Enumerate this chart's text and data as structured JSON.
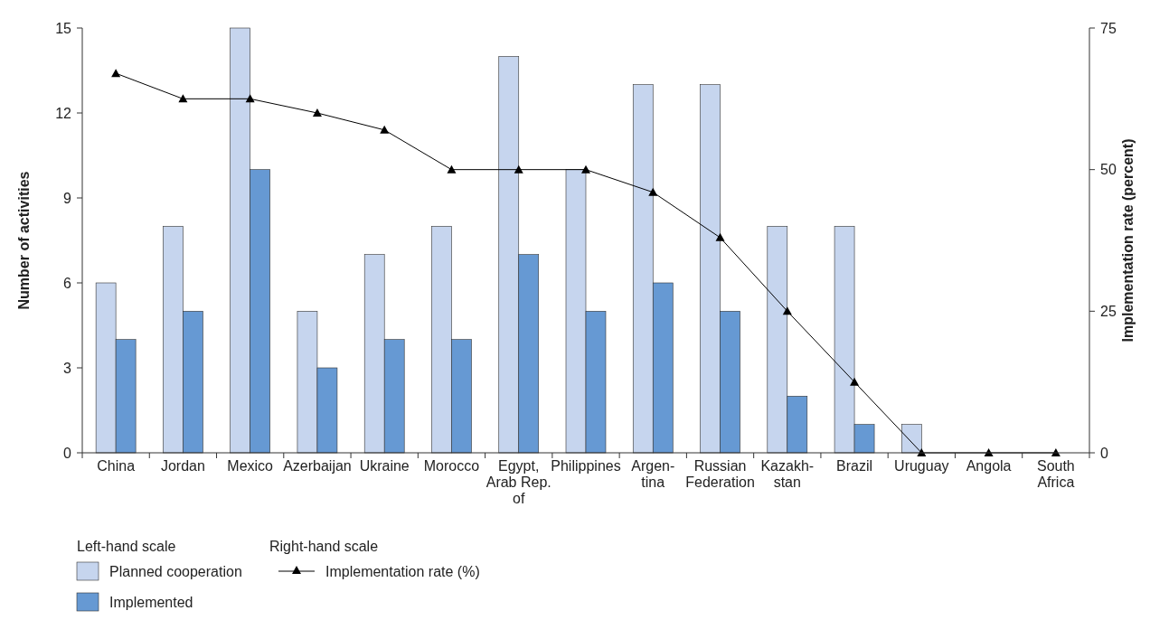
{
  "chart_data": {
    "type": "bar",
    "categories": [
      "China",
      "Jordan",
      "Mexico",
      "Azerbaijan",
      "Ukraine",
      "Morocco",
      "Egypt,\nArab Rep.\nof",
      "Philippines",
      "Argen-\ntina",
      "Russian\nFederation",
      "Kazakh-\nstan",
      "Brazil",
      "Uruguay",
      "Angola",
      "South\nAfrica"
    ],
    "series": [
      {
        "name": "Planned cooperation",
        "color": "#c6d5ee",
        "values": [
          6,
          8,
          15,
          5,
          7,
          8,
          14,
          10,
          13,
          13,
          8,
          8,
          1,
          0,
          0
        ]
      },
      {
        "name": "Implemented",
        "color": "#6699d3",
        "values": [
          4,
          5,
          10,
          3,
          4,
          4,
          7,
          5,
          6,
          5,
          2,
          1,
          0,
          0,
          0
        ]
      },
      {
        "name": "Implementation rate (%)",
        "type": "line",
        "axis": "y2",
        "color": "#000000",
        "marker": "triangle",
        "values": [
          67,
          62.5,
          62.5,
          60,
          57,
          50,
          50,
          50,
          46,
          38,
          25,
          12.5,
          0,
          0,
          0
        ]
      }
    ],
    "ylabel": "Number of activities",
    "y2label": "Implementation rate (percent)",
    "ylim": [
      0,
      15
    ],
    "yticks": [
      0,
      3,
      6,
      9,
      12,
      15
    ],
    "y2lim": [
      0,
      75
    ],
    "y2ticks": [
      0,
      25,
      50,
      75
    ],
    "grid": false,
    "legend": "bottom",
    "legend_title": "Left-hand scale",
    "annotations": [
      "Right-hand scale"
    ]
  }
}
